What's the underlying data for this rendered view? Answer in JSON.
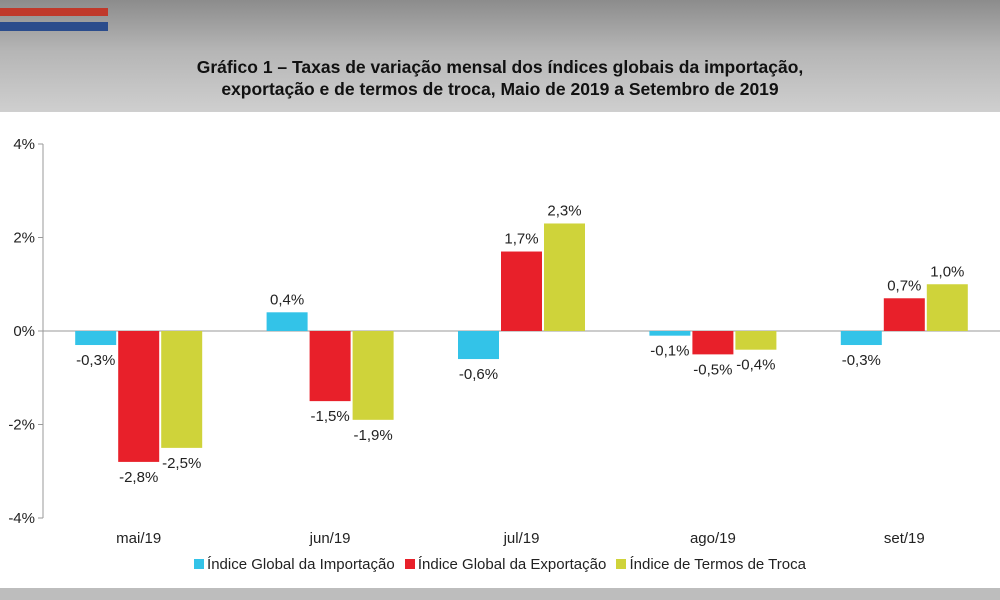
{
  "chart_data": {
    "type": "bar",
    "title": "Gráfico 1 – Taxas de variação mensal dos índices globais da importação,",
    "subtitle": "exportação e de termos de troca, Maio de 2019 a Setembro de 2019",
    "categories": [
      "mai/19",
      "jun/19",
      "jul/19",
      "ago/19",
      "set/19"
    ],
    "series": [
      {
        "name": "Índice Global da Importação",
        "color": "#33c3e8",
        "values": [
          -0.3,
          0.4,
          -0.6,
          -0.1,
          -0.3
        ],
        "labels": [
          "-0,3%",
          "0,4%",
          "-0,6%",
          "-0,1%",
          "-0,3%"
        ]
      },
      {
        "name": "Índice Global da Exportação",
        "color": "#e8202a",
        "values": [
          -2.8,
          -1.5,
          1.7,
          -0.5,
          0.7
        ],
        "labels": [
          "-2,8%",
          "-1,5%",
          "1,7%",
          "-0,5%",
          "0,7%"
        ]
      },
      {
        "name": "Índice de Termos de Troca",
        "color": "#cfd33a",
        "values": [
          -2.5,
          -1.9,
          2.3,
          -0.4,
          1.0
        ],
        "labels": [
          "-2,5%",
          "-1,9%",
          "2,3%",
          "-0,4%",
          "1,0%"
        ]
      }
    ],
    "yticks": [
      4,
      2,
      0,
      -2,
      -4
    ],
    "ytick_labels": [
      "4%",
      "2%",
      "0%",
      "-2%",
      "-4%"
    ],
    "ylim": [
      -4,
      4
    ],
    "legend": "bottom",
    "grid": false
  }
}
